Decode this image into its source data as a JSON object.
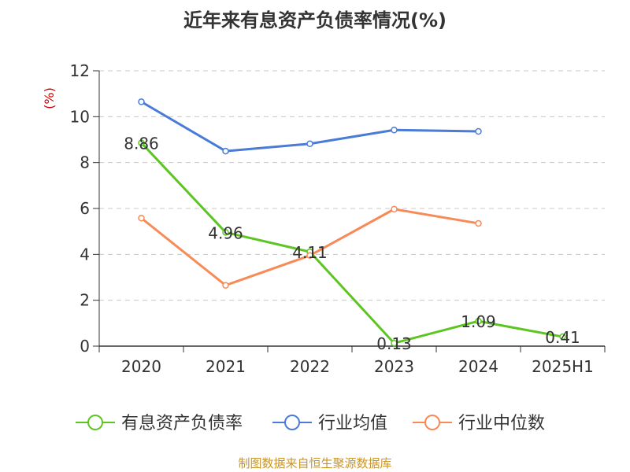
{
  "chart_data": {
    "type": "line",
    "title": "近年来有息资产负债率情况(%)",
    "ylabel": "(%)",
    "xlabel": "",
    "categories": [
      "2020",
      "2021",
      "2022",
      "2023",
      "2024",
      "2025H1"
    ],
    "ylim": [
      0,
      12
    ],
    "yticks": [
      "0",
      "2",
      "4",
      "6",
      "8",
      "10",
      "12"
    ],
    "grid": true,
    "legend_position": "bottom",
    "series": [
      {
        "name": "有息资产负债率",
        "color": "#5cc522",
        "values": [
          8.86,
          4.96,
          4.11,
          0.13,
          1.09,
          0.41
        ],
        "labels": [
          "8.86",
          "4.96",
          "4.11",
          "0.13",
          "1.09",
          "0.41"
        ]
      },
      {
        "name": "行业均值",
        "color": "#4a7bd6",
        "values": [
          10.65,
          8.5,
          8.82,
          9.42,
          9.36,
          null
        ]
      },
      {
        "name": "行业中位数",
        "color": "#f78a56",
        "values": [
          5.58,
          2.65,
          3.95,
          5.97,
          5.35,
          null
        ]
      }
    ]
  },
  "source": "制图数据来自恒生聚源数据库",
  "colors": {
    "axis": "#333333",
    "grid": "#c8c8c8",
    "ylabel": "#cc0000",
    "source": "#c8952a"
  }
}
